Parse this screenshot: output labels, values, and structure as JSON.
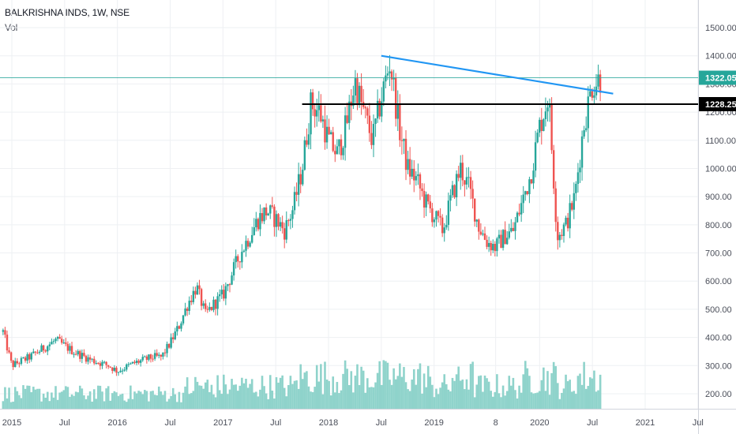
{
  "header": {
    "title": "BALKRISHNA INDS, 1W, NSE",
    "volume_label": "Vol"
  },
  "colors": {
    "up": "#26a69a",
    "down": "#ef5350",
    "volume": "#8fd3cb",
    "trendline": "#2196f3",
    "support": "#000000",
    "last_price": "#26a69a",
    "grid": "#eef0f3",
    "axis_text": "#4a4e59"
  },
  "chart_data": {
    "type": "candlestick",
    "title": "BALKRISHNA INDS, 1W, NSE",
    "price_axis": {
      "ticks": [
        "1500.00",
        "1400.00",
        "1300.00",
        "1200.00",
        "1100.00",
        "1000.00",
        "900.00",
        "800.00",
        "700.00",
        "600.00",
        "500.00",
        "400.00",
        "300.00",
        "200.00"
      ],
      "ylim": [
        160,
        1560
      ]
    },
    "time_axis": {
      "labels": [
        "2015",
        "Jul",
        "2016",
        "Jul",
        "2017",
        "Jul",
        "2018",
        "Jul",
        "2019",
        "8",
        "2020",
        "Jul",
        "2021",
        "Jul"
      ],
      "range": [
        "2015-01",
        "2021-07"
      ]
    },
    "price_labels": [
      {
        "value": 1322.05,
        "text": "1322.05",
        "kind": "last"
      },
      {
        "value": 1228.25,
        "text": "1228.25",
        "kind": "support"
      }
    ],
    "trendline": {
      "from": {
        "date": "2018-07",
        "value": 1400
      },
      "to": {
        "date": "2020-09",
        "value": 1260
      }
    },
    "support_line": {
      "value": 1228.25,
      "from": "2017-10",
      "to": "2021-07"
    },
    "price_path": [
      [
        "2014-12",
        420
      ],
      [
        "2015-01",
        300
      ],
      [
        "2015-03",
        330
      ],
      [
        "2015-05",
        370
      ],
      [
        "2015-06",
        390
      ],
      [
        "2015-08",
        350
      ],
      [
        "2015-10",
        320
      ],
      [
        "2015-12",
        300
      ],
      [
        "2016-01",
        280
      ],
      [
        "2016-03",
        310
      ],
      [
        "2016-05",
        330
      ],
      [
        "2016-06",
        330
      ],
      [
        "2016-07",
        380
      ],
      [
        "2016-08",
        440
      ],
      [
        "2016-09",
        520
      ],
      [
        "2016-10",
        580
      ],
      [
        "2016-11",
        480
      ],
      [
        "2016-12",
        520
      ],
      [
        "2017-01",
        550
      ],
      [
        "2017-03",
        700
      ],
      [
        "2017-04",
        760
      ],
      [
        "2017-05",
        820
      ],
      [
        "2017-06",
        850
      ],
      [
        "2017-07",
        820
      ],
      [
        "2017-08",
        780
      ],
      [
        "2017-09",
        860
      ],
      [
        "2017-10",
        1000
      ],
      [
        "2017-11",
        1230
      ],
      [
        "2017-12",
        1200
      ],
      [
        "2018-01",
        1100
      ],
      [
        "2018-02",
        1050
      ],
      [
        "2018-03",
        1150
      ],
      [
        "2018-04",
        1310
      ],
      [
        "2018-05",
        1200
      ],
      [
        "2018-06",
        1100
      ],
      [
        "2018-07",
        1250
      ],
      [
        "2018-08",
        1380
      ],
      [
        "2018-09",
        1150
      ],
      [
        "2018-10",
        1000
      ],
      [
        "2018-11",
        960
      ],
      [
        "2018-12",
        880
      ],
      [
        "2019-02",
        780
      ],
      [
        "2019-03",
        900
      ],
      [
        "2019-04",
        1000
      ],
      [
        "2019-05",
        930
      ],
      [
        "2019-06",
        800
      ],
      [
        "2019-07",
        740
      ],
      [
        "2019-08",
        720
      ],
      [
        "2019-09",
        760
      ],
      [
        "2019-10",
        780
      ],
      [
        "2019-11",
        880
      ],
      [
        "2019-12",
        980
      ],
      [
        "2020-01",
        1150
      ],
      [
        "2020-02",
        1260
      ],
      [
        "2020-03",
        760
      ],
      [
        "2020-04",
        800
      ],
      [
        "2020-05",
        900
      ],
      [
        "2020-06",
        1150
      ],
      [
        "2020-07",
        1300
      ],
      [
        "2020-08",
        1322
      ]
    ]
  }
}
